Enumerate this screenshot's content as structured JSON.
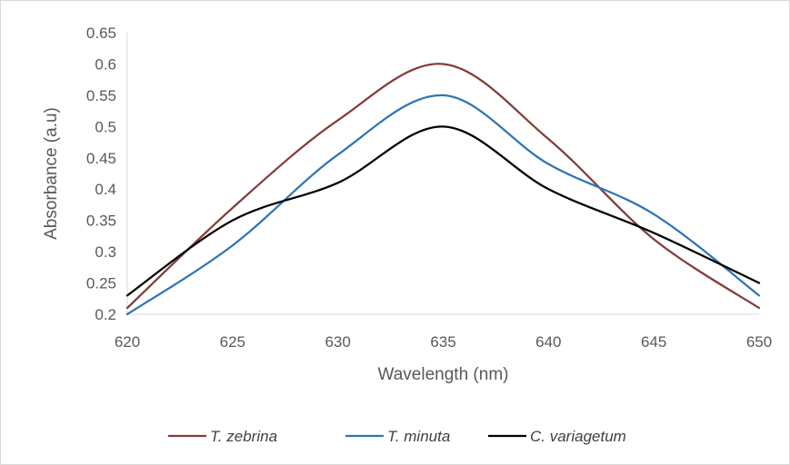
{
  "chart_data": {
    "type": "line",
    "title": "",
    "xlabel": "Wavelength (nm)",
    "ylabel": "Absorbance (a.u)",
    "xlim": [
      620,
      650
    ],
    "ylim": [
      0.2,
      0.65
    ],
    "x_ticks": [
      "620",
      "625",
      "630",
      "635",
      "640",
      "645",
      "650"
    ],
    "y_ticks": [
      "0.2",
      "0.25",
      "0.3",
      "0.35",
      "0.4",
      "0.45",
      "0.5",
      "0.55",
      "0.6",
      "0.65"
    ],
    "grid": false,
    "legend_position": "bottom",
    "x": [
      620,
      625,
      630,
      635,
      640,
      645,
      650
    ],
    "series": [
      {
        "name": "T. zebrina",
        "color": "#843c39",
        "values": [
          0.21,
          0.37,
          0.51,
          0.6,
          0.48,
          0.32,
          0.21
        ]
      },
      {
        "name": "T. minuta",
        "color": "#2e75b6",
        "values": [
          0.2,
          0.31,
          0.455,
          0.55,
          0.44,
          0.36,
          0.23
        ]
      },
      {
        "name": "C. variagetum",
        "color": "#000000",
        "values": [
          0.23,
          0.35,
          0.41,
          0.5,
          0.4,
          0.33,
          0.25
        ]
      }
    ]
  }
}
